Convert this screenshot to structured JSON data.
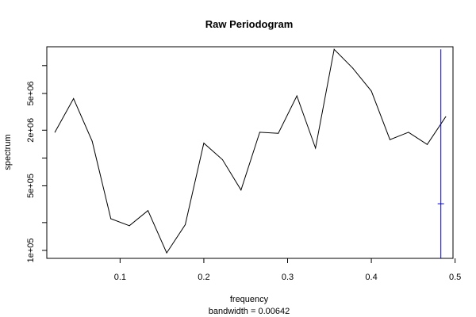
{
  "chart_data": {
    "type": "line",
    "title": "Raw Periodogram",
    "xlabel": "frequency",
    "xlabel_sub": "bandwidth = 0.00642",
    "ylabel": "spectrum",
    "y_scale": "log",
    "xlim": [
      0.0125,
      0.4975
    ],
    "ylim": [
      82000,
      16000000
    ],
    "x_ticks": [
      0.1,
      0.2,
      0.3,
      0.4,
      0.5
    ],
    "x_tick_labels": [
      "0.1",
      "0.2",
      "0.3",
      "0.4",
      "0.5"
    ],
    "y_ticks": [
      100000,
      200000,
      500000,
      1000000,
      2000000,
      5000000,
      10000000
    ],
    "y_tick_labels": [
      "1e+05",
      "",
      "5e+05",
      "",
      "2e+06",
      "5e+06",
      ""
    ],
    "grid": false,
    "legend": "none",
    "line_color": "#000000",
    "ci_color": "#0000cc",
    "series": [
      {
        "x": [
          0.0222,
          0.0444,
          0.0667,
          0.0889,
          0.1111,
          0.1333,
          0.1556,
          0.1778,
          0.2,
          0.2222,
          0.2444,
          0.2667,
          0.2889,
          0.3111,
          0.3333,
          0.3556,
          0.3778,
          0.4,
          0.4222,
          0.4444,
          0.4667,
          0.4889
        ],
        "values": [
          1900000,
          4400000,
          1520000,
          220000,
          185000,
          270000,
          94000,
          190000,
          1450000,
          960000,
          450000,
          1900000,
          1850000,
          4700000,
          1280000,
          15000000,
          9400000,
          5300000,
          1580000,
          1900000,
          1400000,
          2800000
        ]
      }
    ],
    "ci_bar": {
      "x": 0.483,
      "lower": 82000,
      "upper": 15000000,
      "center": 320000
    }
  }
}
